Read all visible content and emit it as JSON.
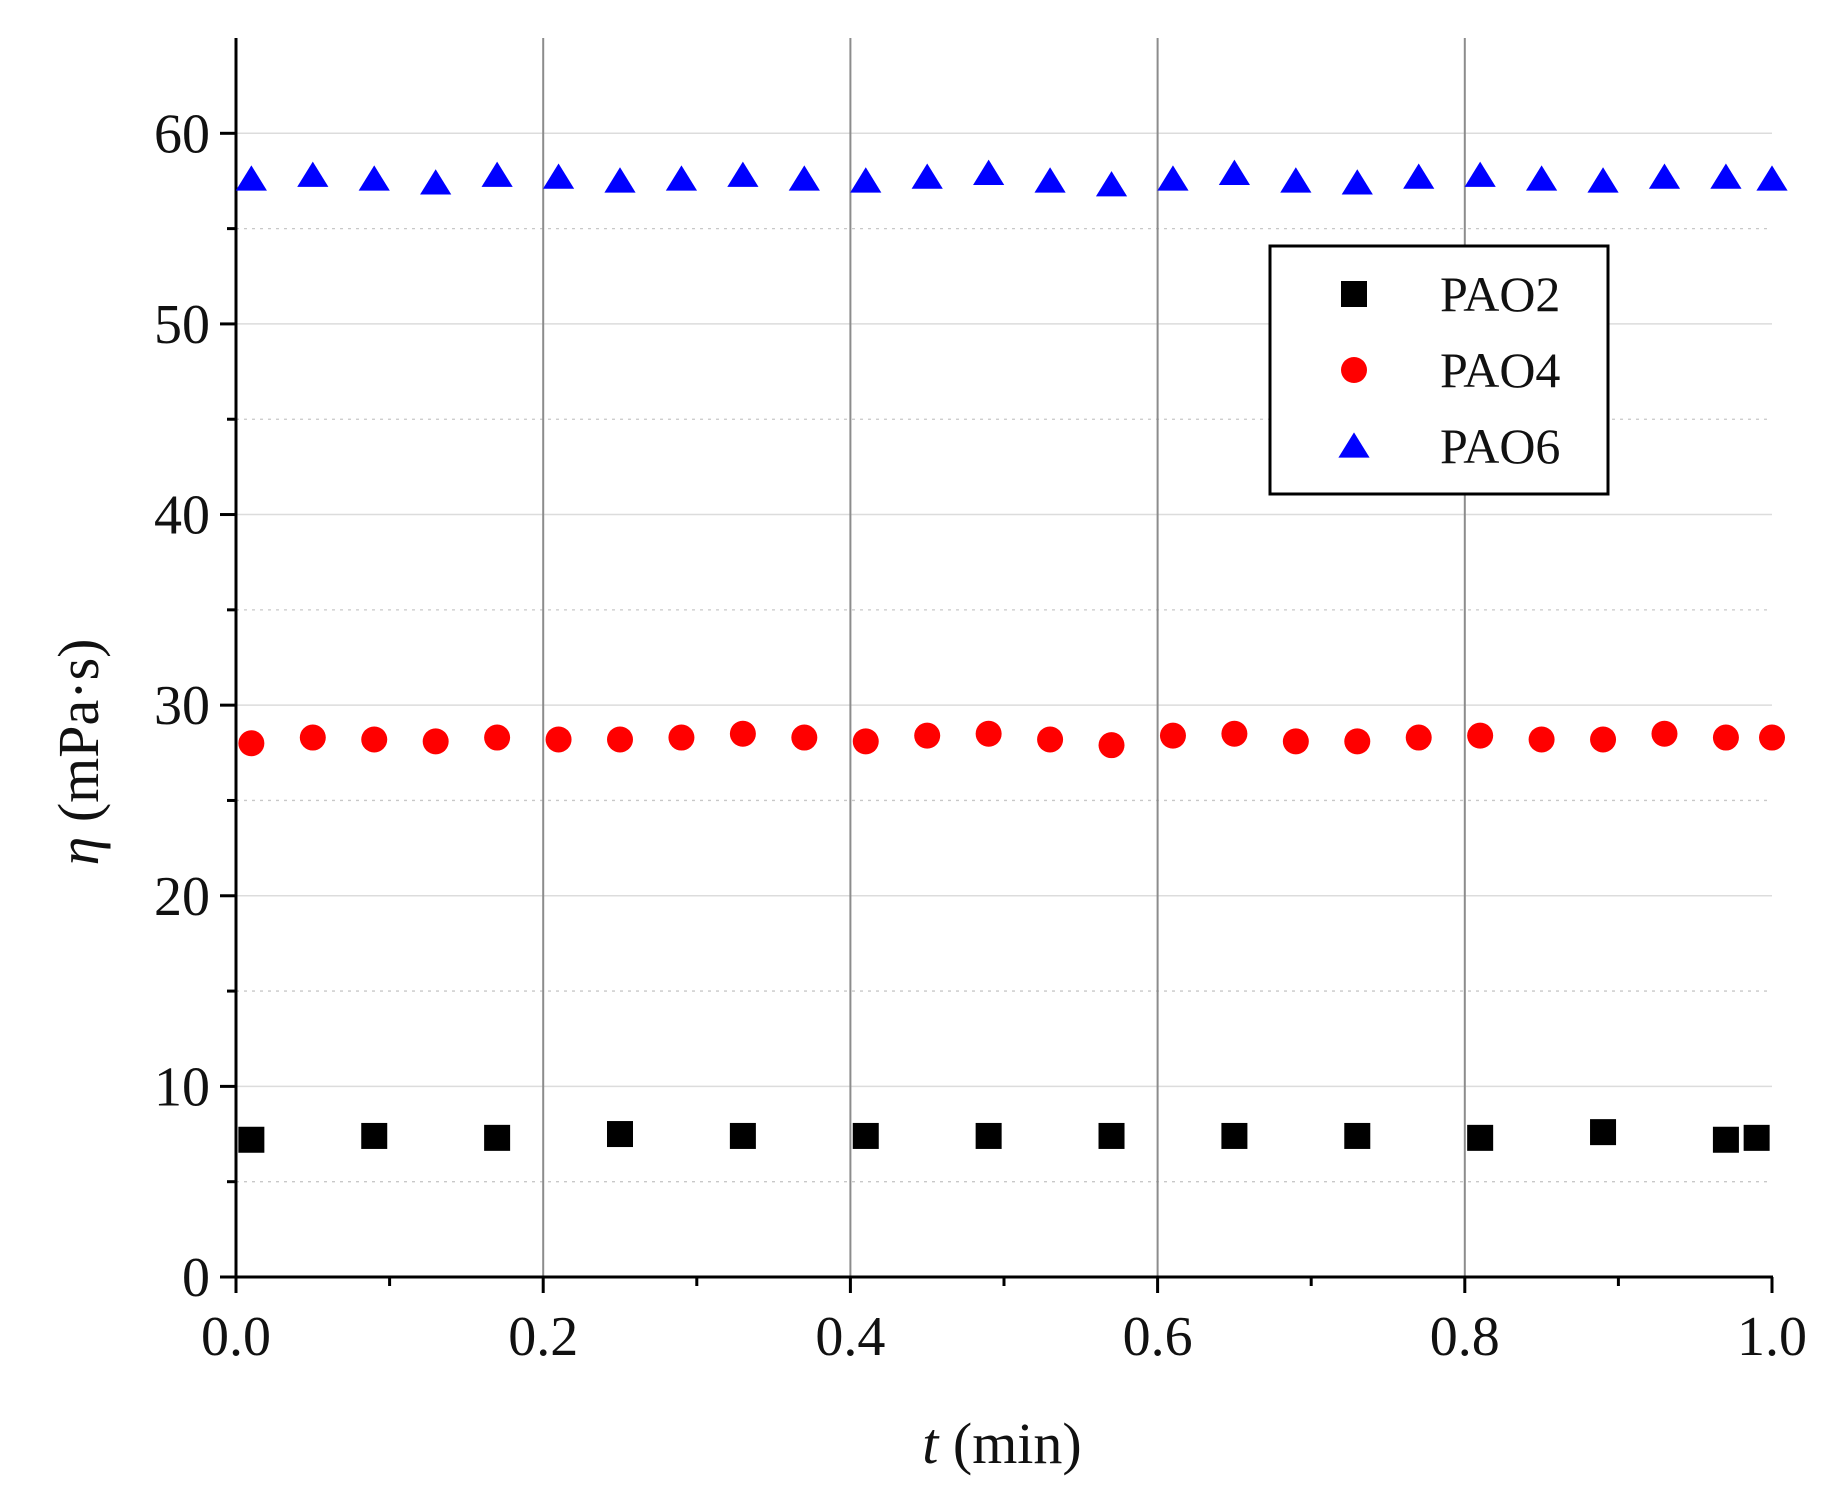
{
  "chart_data": {
    "type": "scatter",
    "title": "",
    "xlabel": {
      "symbol": "t",
      "unit": " (min)"
    },
    "ylabel": {
      "symbol": "η",
      "unit": " (mPa·s)"
    },
    "xlim": [
      0.0,
      1.0
    ],
    "ylim": [
      0,
      65
    ],
    "xticks": [
      0.0,
      0.2,
      0.4,
      0.6,
      0.8,
      1.0
    ],
    "xtick_labels": [
      "0.0",
      "0.2",
      "0.4",
      "0.6",
      "0.8",
      "1.0"
    ],
    "yticks": [
      0,
      10,
      20,
      30,
      40,
      50,
      60
    ],
    "ytick_labels": [
      "0",
      "10",
      "20",
      "30",
      "40",
      "50",
      "60"
    ],
    "grid": true,
    "legend_position": "upper-right",
    "series": [
      {
        "name": "PAO2",
        "marker": "square",
        "color": "#000000",
        "x": [
          0.01,
          0.09,
          0.17,
          0.25,
          0.33,
          0.41,
          0.49,
          0.57,
          0.65,
          0.73,
          0.81,
          0.89,
          0.97,
          0.99
        ],
        "y": [
          7.2,
          7.4,
          7.3,
          7.5,
          7.4,
          7.4,
          7.4,
          7.4,
          7.4,
          7.4,
          7.3,
          7.6,
          7.2,
          7.3
        ]
      },
      {
        "name": "PAO4",
        "marker": "circle",
        "color": "#ff0000",
        "x": [
          0.01,
          0.05,
          0.09,
          0.13,
          0.17,
          0.21,
          0.25,
          0.29,
          0.33,
          0.37,
          0.41,
          0.45,
          0.49,
          0.53,
          0.57,
          0.61,
          0.65,
          0.69,
          0.73,
          0.77,
          0.81,
          0.85,
          0.89,
          0.93,
          0.97,
          1.0
        ],
        "y": [
          28.0,
          28.3,
          28.2,
          28.1,
          28.3,
          28.2,
          28.2,
          28.3,
          28.5,
          28.3,
          28.1,
          28.4,
          28.5,
          28.2,
          27.9,
          28.4,
          28.5,
          28.1,
          28.1,
          28.3,
          28.4,
          28.2,
          28.2,
          28.5,
          28.3,
          28.3
        ]
      },
      {
        "name": "PAO6",
        "marker": "triangle",
        "color": "#0000ff",
        "x": [
          0.01,
          0.05,
          0.09,
          0.13,
          0.17,
          0.21,
          0.25,
          0.29,
          0.33,
          0.37,
          0.41,
          0.45,
          0.49,
          0.53,
          0.57,
          0.61,
          0.65,
          0.69,
          0.73,
          0.77,
          0.81,
          0.85,
          0.89,
          0.93,
          0.97,
          1.0
        ],
        "y": [
          57.6,
          57.8,
          57.6,
          57.4,
          57.8,
          57.7,
          57.5,
          57.6,
          57.8,
          57.6,
          57.5,
          57.7,
          57.9,
          57.5,
          57.3,
          57.6,
          57.9,
          57.5,
          57.4,
          57.7,
          57.8,
          57.6,
          57.5,
          57.7,
          57.7,
          57.6
        ]
      }
    ]
  }
}
